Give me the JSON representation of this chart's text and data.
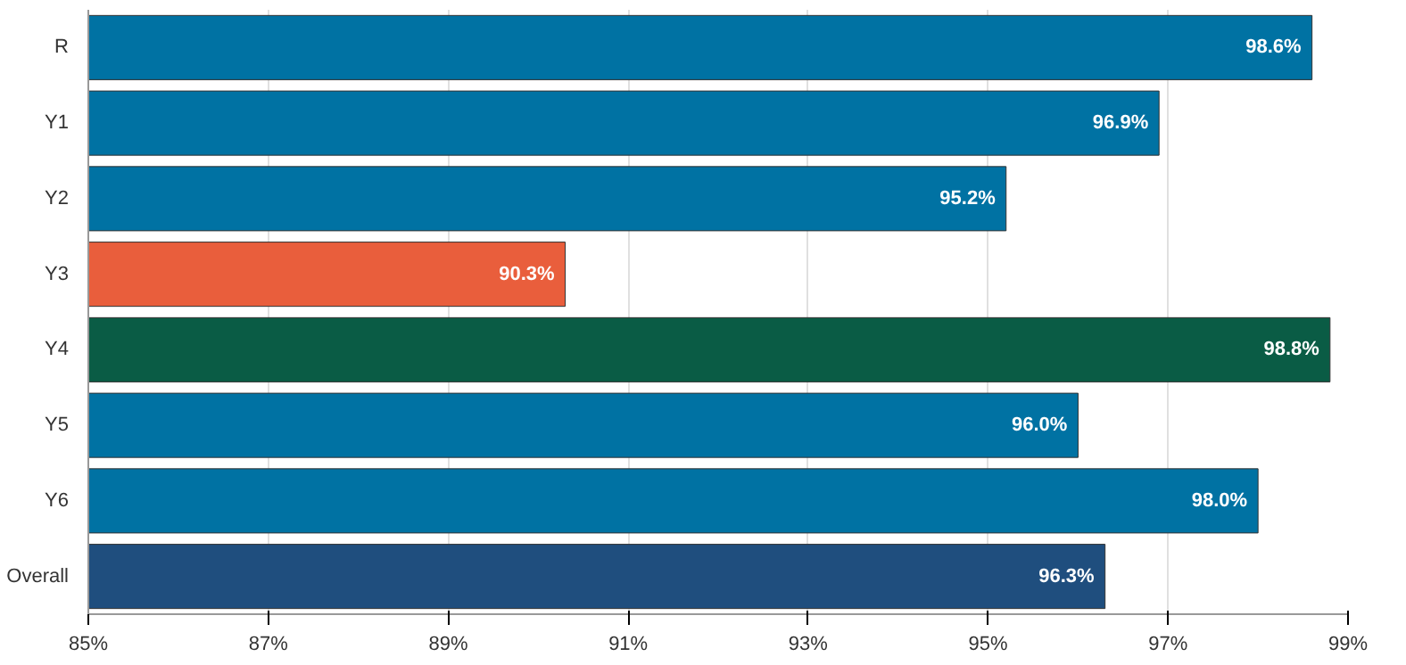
{
  "chart_data": {
    "type": "bar",
    "orientation": "horizontal",
    "categories": [
      "R",
      "Y1",
      "Y2",
      "Y3",
      "Y4",
      "Y5",
      "Y6",
      "Overall"
    ],
    "values": [
      98.6,
      96.9,
      95.2,
      90.3,
      98.8,
      96.0,
      98.0,
      96.3
    ],
    "colors": [
      "#0072a3",
      "#0072a3",
      "#0072a3",
      "#e95e3c",
      "#0a5c45",
      "#0072a3",
      "#0072a3",
      "#1f4e7e"
    ],
    "value_labels": [
      "98.6%",
      "96.9%",
      "95.2%",
      "90.3%",
      "98.8%",
      "96.0%",
      "98.0%",
      "96.3%"
    ],
    "xlim": [
      85,
      99
    ],
    "xticks": [
      {
        "value": 85,
        "label": "85%"
      },
      {
        "value": 87,
        "label": "87%"
      },
      {
        "value": 89,
        "label": "89%"
      },
      {
        "value": 91,
        "label": "91%"
      },
      {
        "value": 93,
        "label": "93%"
      },
      {
        "value": 95,
        "label": "95%"
      },
      {
        "value": 97,
        "label": "97%"
      },
      {
        "value": 99,
        "label": "99%"
      }
    ],
    "grid": "x"
  }
}
